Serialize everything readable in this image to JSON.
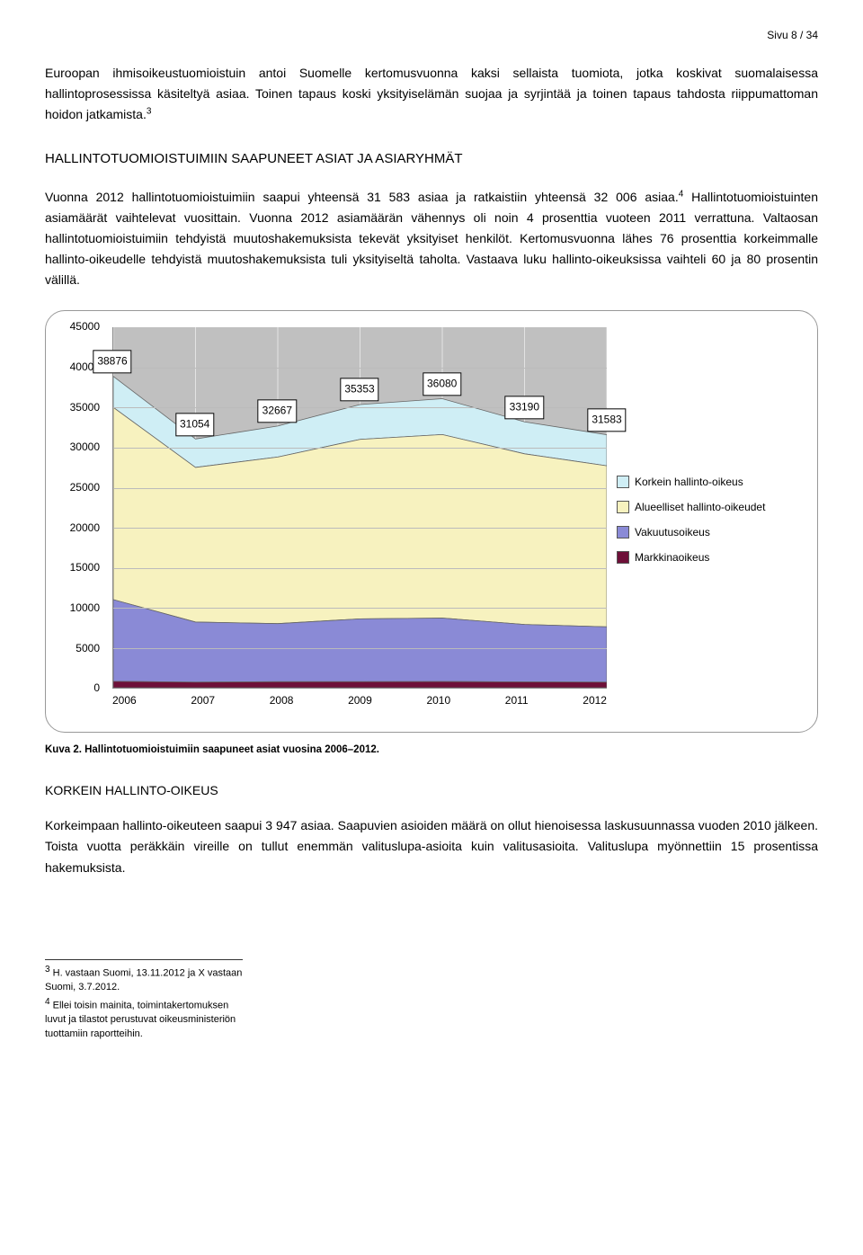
{
  "page_number": "Sivu 8 / 34",
  "para1": "Euroopan ihmisoikeustuomioistuin antoi Suomelle kertomusvuonna kaksi sellaista tuomiota, jotka koskivat suomalaisessa hallintoprosessissa käsiteltyä asiaa. Toinen tapaus koski yksityiselämän suojaa ja syrjintää ja toinen tapaus tahdosta riippumattoman hoidon jatkamista.",
  "heading1": "HALLINTOTUOMIOISTUIMIIN SAAPUNEET ASIAT JA ASIARYHMÄT",
  "para2a": "Vuonna 2012 hallintotuomioistuimiin saapui yhteensä 31 583 asiaa ja ratkaistiin yhteensä 32 006 asiaa.",
  "para2b": " Hallintotuomioistuinten asiamäärät vaihtelevat vuosittain. Vuonna 2012 asiamäärän vähennys oli noin 4 prosenttia vuoteen 2011 verrattuna. Valtaosan hallintotuomioistuimiin tehdyistä muutoshakemuksista tekevät yksityiset henkilöt. Kertomusvuonna lähes 76 prosenttia korkeimmalle hallinto-oikeudelle tehdyistä muutoshakemuksista tuli yksityiseltä taholta. Vastaava luku hallinto-oikeuksissa vaihteli 60 ja 80 prosentin välillä.",
  "chart": {
    "type": "stacked-area",
    "ylim_max": 45000,
    "ytick_step": 5000,
    "yticks": [
      45000,
      40000,
      35000,
      30000,
      25000,
      20000,
      15000,
      10000,
      5000,
      0
    ],
    "years": [
      "2006",
      "2007",
      "2008",
      "2009",
      "2010",
      "2011",
      "2012"
    ],
    "totals": [
      38876,
      31054,
      32667,
      35353,
      36080,
      33190,
      31583
    ],
    "markkinaoikeus_cum": [
      800,
      700,
      750,
      760,
      770,
      730,
      700
    ],
    "vakuutusoikeus_cum": [
      11000,
      8200,
      8000,
      8600,
      8700,
      7900,
      7600
    ],
    "alueelliset_cum": [
      35000,
      27500,
      28800,
      31000,
      31600,
      29200,
      27700
    ],
    "korkein_cum": [
      38876,
      31054,
      32667,
      35353,
      36080,
      33190,
      31583
    ],
    "colors": {
      "markkinaoikeus": "#6e1039",
      "vakuutusoikeus": "#8a8ad6",
      "alueelliset": "#f7f2bf",
      "korkein": "#cfeef5",
      "grid_bg": "#c0c0c0",
      "grid_line": "#bbbbbb"
    },
    "legend": [
      {
        "label": "Korkein hallinto-oikeus",
        "color": "#cfeef5"
      },
      {
        "label": "Alueelliset hallinto-oikeudet",
        "color": "#f7f2bf"
      },
      {
        "label": "Vakuutusoikeus",
        "color": "#8a8ad6"
      },
      {
        "label": "Markkinaoikeus",
        "color": "#6e1039"
      }
    ]
  },
  "caption": "Kuva 2. Hallintotuomioistuimiin saapuneet asiat vuosina 2006–2012.",
  "section2_h": "KORKEIN HALLINTO-OIKEUS",
  "para3": "Korkeimpaan hallinto-oikeuteen saapui 3 947 asiaa. Saapuvien asioiden määrä on ollut hienoisessa laskusuunnassa vuoden 2010 jälkeen. Toista vuotta peräkkäin vireille on tullut enemmän valituslupa-asioita kuin valitusasioita. Valituslupa myönnettiin 15 prosentissa hakemuksista.",
  "footnote3": "H. vastaan Suomi, 13.11.2012 ja X vastaan Suomi, 3.7.2012.",
  "footnote4": "Ellei toisin mainita, toimintakertomuksen luvut ja tilastot perustuvat oikeusministeriön tuottamiin raportteihin."
}
